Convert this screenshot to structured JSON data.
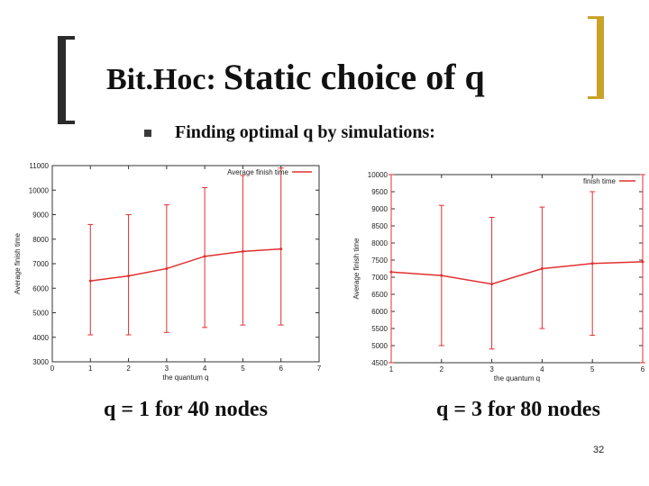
{
  "slide": {
    "title_prefix": "Bit.Hoc:",
    "title_main": "Static choice of q",
    "bullet": "Finding optimal q by simulations:",
    "caption_left": "q = 1 for 40 nodes",
    "caption_right": "q = 3 for 80 nodes",
    "page_number": "32",
    "bullet_icon": "square-bullet",
    "accent_color": "#c9a227"
  },
  "chart_data": [
    {
      "type": "line",
      "title": "",
      "xlabel": "the quantum q",
      "ylabel": "Average finish time",
      "xlim": [
        0,
        7
      ],
      "ylim": [
        3000,
        11000
      ],
      "xticks": [
        0,
        1,
        2,
        3,
        4,
        5,
        6,
        7
      ],
      "yticks": [
        3000,
        4000,
        5000,
        6000,
        7000,
        8000,
        9000,
        10000,
        11000
      ],
      "legend_position": "top-right",
      "grid": false,
      "series": [
        {
          "name": "Average finish time",
          "color": "#e03030",
          "x": [
            1,
            2,
            3,
            4,
            5,
            6
          ],
          "y": [
            6300,
            6500,
            6800,
            7300,
            7500,
            7600
          ],
          "err_low": [
            4100,
            4100,
            4200,
            4400,
            4500,
            4500
          ],
          "err_high": [
            8600,
            9000,
            9400,
            10100,
            10600,
            10900
          ]
        }
      ]
    },
    {
      "type": "line",
      "title": "",
      "xlabel": "the quantum q",
      "ylabel": "Average finish time",
      "xlim": [
        1,
        6
      ],
      "ylim": [
        4500,
        10000
      ],
      "xticks": [
        1,
        2,
        3,
        4,
        5,
        6
      ],
      "yticks": [
        4500,
        5000,
        5500,
        6000,
        6500,
        7000,
        7500,
        8000,
        8500,
        9000,
        9500,
        10000
      ],
      "legend_position": "top-right",
      "grid": false,
      "series": [
        {
          "name": "finish time",
          "color": "#e03030",
          "x": [
            1,
            2,
            3,
            4,
            5,
            6
          ],
          "y": [
            7150,
            7050,
            6800,
            7250,
            7400,
            7450
          ],
          "err_low": [
            4500,
            5000,
            4900,
            5500,
            5300,
            4500
          ],
          "err_high": [
            10000,
            9100,
            8750,
            9050,
            9500,
            10000
          ]
        }
      ]
    }
  ]
}
